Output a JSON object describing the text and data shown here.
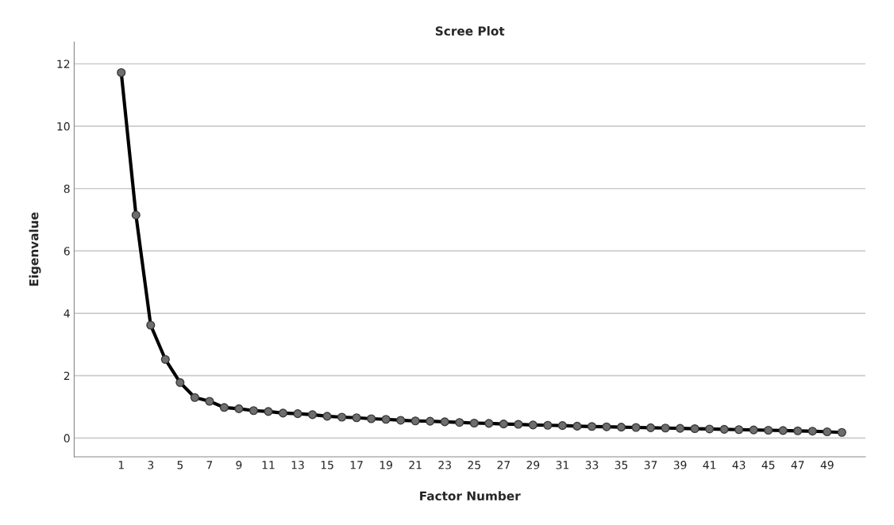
{
  "chart_data": {
    "type": "line",
    "title": "Scree Plot",
    "xlabel": "Factor Number",
    "ylabel": "Eigenvalue",
    "x": [
      1,
      2,
      3,
      4,
      5,
      6,
      7,
      8,
      9,
      10,
      11,
      12,
      13,
      14,
      15,
      16,
      17,
      18,
      19,
      20,
      21,
      22,
      23,
      24,
      25,
      26,
      27,
      28,
      29,
      30,
      31,
      32,
      33,
      34,
      35,
      36,
      37,
      38,
      39,
      40,
      41,
      42,
      43,
      44,
      45,
      46,
      47,
      48,
      49,
      50
    ],
    "series": [
      {
        "color": "#000000",
        "values": [
          11.72,
          7.15,
          3.62,
          2.52,
          1.78,
          1.3,
          1.18,
          0.98,
          0.94,
          0.88,
          0.85,
          0.8,
          0.78,
          0.75,
          0.7,
          0.67,
          0.65,
          0.62,
          0.6,
          0.57,
          0.55,
          0.54,
          0.52,
          0.5,
          0.48,
          0.47,
          0.45,
          0.44,
          0.42,
          0.41,
          0.4,
          0.38,
          0.37,
          0.36,
          0.35,
          0.34,
          0.33,
          0.32,
          0.31,
          0.3,
          0.29,
          0.28,
          0.27,
          0.26,
          0.25,
          0.24,
          0.23,
          0.22,
          0.2,
          0.18
        ]
      }
    ],
    "marker": "circle",
    "line_style": "solid",
    "grid": "y",
    "xlim": [
      -2.2,
      51.6
    ],
    "xticks": [
      1,
      3,
      5,
      7,
      9,
      11,
      13,
      15,
      17,
      19,
      21,
      23,
      25,
      27,
      29,
      31,
      33,
      35,
      37,
      39,
      41,
      43,
      45,
      47,
      49
    ],
    "ylim": [
      -0.6,
      12.7
    ],
    "yticks": [
      0,
      2,
      4,
      6,
      8,
      10,
      12
    ]
  }
}
